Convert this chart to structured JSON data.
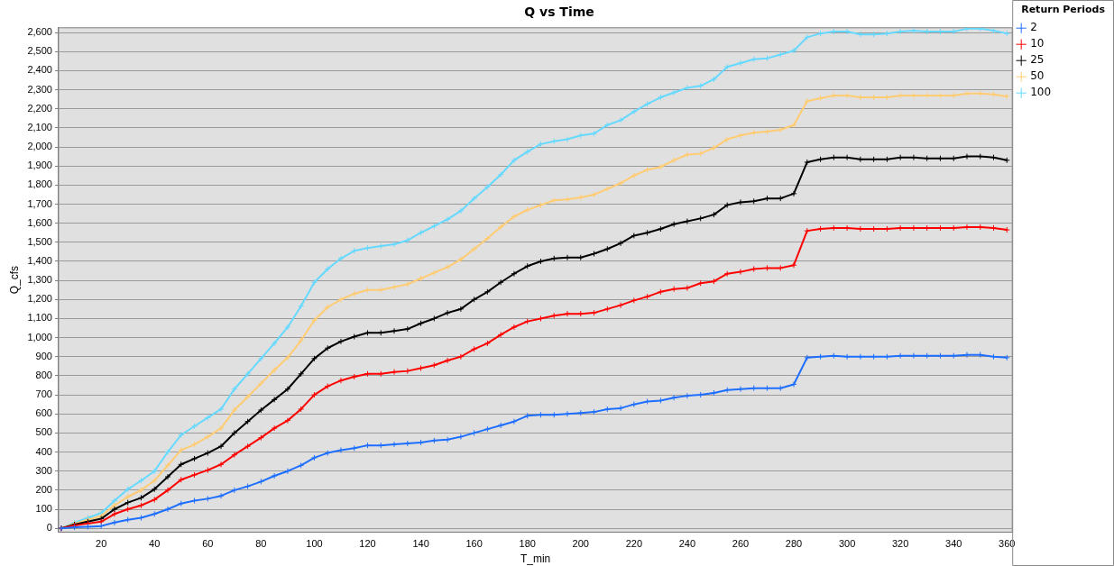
{
  "chart_data": {
    "type": "line",
    "title": "Q vs Time",
    "xlabel": "T_min",
    "ylabel": "Q_cfs",
    "legend_title": "Return Periods",
    "legend": "right",
    "grid": "y",
    "marker": "cross",
    "line_style": "solid",
    "xlim": [
      4,
      362
    ],
    "xticks": [
      20,
      40,
      60,
      80,
      100,
      120,
      140,
      160,
      180,
      200,
      220,
      240,
      260,
      280,
      300,
      320,
      340,
      360
    ],
    "ylim": [
      -20,
      2625
    ],
    "yticks": [
      0,
      100,
      200,
      300,
      400,
      500,
      600,
      700,
      800,
      900,
      {
        "value": 1000,
        "label": "1,000"
      },
      {
        "value": 1100,
        "label": "1,100"
      },
      {
        "value": 1200,
        "label": "1,200"
      },
      {
        "value": 1300,
        "label": "1,300"
      },
      {
        "value": 1400,
        "label": "1,400"
      },
      {
        "value": 1500,
        "label": "1,500"
      },
      {
        "value": 1600,
        "label": "1,600"
      },
      {
        "value": 1700,
        "label": "1,700"
      },
      {
        "value": 1800,
        "label": "1,800"
      },
      {
        "value": 1900,
        "label": "1,900"
      },
      {
        "value": 2000,
        "label": "2,000"
      },
      {
        "value": 2100,
        "label": "2,100"
      },
      {
        "value": 2200,
        "label": "2,200"
      },
      {
        "value": 2300,
        "label": "2,300"
      },
      {
        "value": 2400,
        "label": "2,400"
      },
      {
        "value": 2500,
        "label": "2,500"
      },
      {
        "value": 2600,
        "label": "2,600"
      }
    ],
    "x": [
      5,
      10,
      15,
      20,
      25,
      30,
      35,
      40,
      45,
      50,
      55,
      60,
      65,
      70,
      75,
      80,
      85,
      90,
      95,
      100,
      105,
      110,
      115,
      120,
      125,
      130,
      135,
      140,
      145,
      150,
      155,
      160,
      165,
      170,
      175,
      180,
      185,
      190,
      195,
      200,
      205,
      210,
      215,
      220,
      225,
      230,
      235,
      240,
      245,
      250,
      255,
      260,
      265,
      270,
      275,
      280,
      285,
      290,
      295,
      300,
      305,
      310,
      315,
      320,
      325,
      330,
      335,
      340,
      345,
      350,
      355,
      360
    ],
    "series": [
      {
        "name": "2",
        "color": "#1e6fff",
        "values": [
          0,
          5,
          8,
          12,
          30,
          45,
          55,
          75,
          100,
          130,
          145,
          155,
          170,
          200,
          220,
          245,
          275,
          300,
          330,
          370,
          395,
          410,
          420,
          435,
          435,
          440,
          445,
          450,
          460,
          465,
          480,
          500,
          520,
          540,
          560,
          590,
          595,
          595,
          600,
          605,
          610,
          625,
          630,
          650,
          665,
          670,
          685,
          695,
          700,
          710,
          725,
          730,
          735,
          735,
          735,
          755,
          895,
          900,
          905,
          900,
          900,
          900,
          900,
          905,
          905,
          905,
          905,
          905,
          910,
          910,
          900,
          895
        ]
      },
      {
        "name": "10",
        "color": "#ff0000",
        "values": [
          0,
          15,
          25,
          35,
          75,
          100,
          120,
          150,
          200,
          255,
          280,
          305,
          335,
          385,
          430,
          475,
          525,
          565,
          625,
          700,
          745,
          775,
          795,
          810,
          810,
          820,
          825,
          840,
          855,
          880,
          900,
          940,
          970,
          1015,
          1055,
          1085,
          1100,
          1115,
          1125,
          1125,
          1130,
          1150,
          1170,
          1195,
          1215,
          1240,
          1255,
          1260,
          1285,
          1295,
          1335,
          1345,
          1360,
          1365,
          1365,
          1380,
          1560,
          1570,
          1575,
          1575,
          1570,
          1570,
          1570,
          1575,
          1575,
          1575,
          1575,
          1575,
          1580,
          1580,
          1575,
          1565
        ]
      },
      {
        "name": "25",
        "color": "#000000",
        "values": [
          0,
          20,
          35,
          50,
          100,
          135,
          160,
          205,
          270,
          335,
          365,
          395,
          430,
          500,
          560,
          620,
          675,
          730,
          810,
          890,
          945,
          980,
          1005,
          1025,
          1025,
          1035,
          1045,
          1075,
          1100,
          1130,
          1150,
          1200,
          1240,
          1290,
          1335,
          1375,
          1400,
          1415,
          1420,
          1420,
          1440,
          1465,
          1495,
          1535,
          1550,
          1570,
          1595,
          1610,
          1625,
          1645,
          1695,
          1710,
          1715,
          1730,
          1730,
          1755,
          1920,
          1935,
          1945,
          1945,
          1935,
          1935,
          1935,
          1945,
          1945,
          1940,
          1940,
          1940,
          1950,
          1950,
          1945,
          1930
        ]
      },
      {
        "name": "50",
        "color": "#ffcc73",
        "values": [
          0,
          25,
          45,
          65,
          120,
          165,
          200,
          250,
          330,
          410,
          440,
          480,
          525,
          620,
          690,
          760,
          830,
          895,
          985,
          1090,
          1160,
          1200,
          1230,
          1250,
          1250,
          1265,
          1280,
          1310,
          1340,
          1370,
          1410,
          1465,
          1520,
          1580,
          1635,
          1670,
          1695,
          1720,
          1725,
          1735,
          1750,
          1780,
          1810,
          1850,
          1880,
          1895,
          1930,
          1960,
          1965,
          1995,
          2040,
          2060,
          2075,
          2080,
          2090,
          2115,
          2240,
          2255,
          2270,
          2270,
          2260,
          2260,
          2260,
          2270,
          2270,
          2270,
          2270,
          2270,
          2280,
          2280,
          2275,
          2265
        ]
      },
      {
        "name": "100",
        "color": "#66d9ff",
        "values": [
          0,
          30,
          55,
          80,
          145,
          205,
          250,
          300,
          400,
          490,
          535,
          580,
          625,
          730,
          810,
          890,
          970,
          1055,
          1165,
          1290,
          1360,
          1415,
          1455,
          1470,
          1480,
          1490,
          1510,
          1550,
          1585,
          1620,
          1665,
          1730,
          1790,
          1855,
          1930,
          1975,
          2015,
          2030,
          2040,
          2060,
          2070,
          2115,
          2140,
          2185,
          2225,
          2260,
          2285,
          2310,
          2320,
          2355,
          2420,
          2440,
          2460,
          2465,
          2485,
          2505,
          2575,
          2595,
          2605,
          2605,
          2590,
          2590,
          2595,
          2605,
          2610,
          2605,
          2605,
          2605,
          2620,
          2620,
          2610,
          2595
        ]
      }
    ]
  }
}
